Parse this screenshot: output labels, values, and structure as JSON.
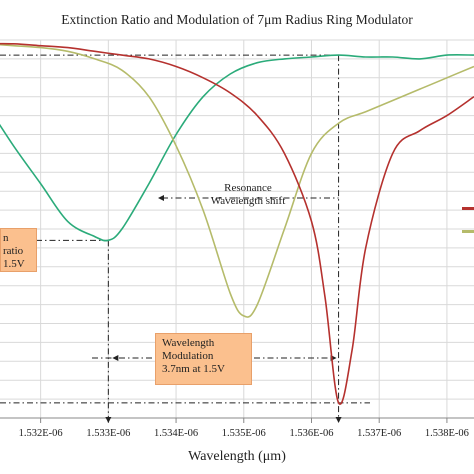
{
  "chart_data": {
    "type": "line",
    "title": "Extinction Ratio and Modulation of 7μm Radius Ring Modulator",
    "xlabel": "Wavelength (μm)",
    "ylabel": "",
    "x_tick_labels": [
      "1.532E-06",
      "1.533E-06",
      "1.534E-06",
      "1.535E-06",
      "1.536E-06",
      "1.537E-06",
      "1.538E-06"
    ],
    "x_tick_values": [
      1.532e-06,
      1.533e-06,
      1.534e-06,
      1.535e-06,
      1.536e-06,
      1.537e-06,
      1.538e-06
    ],
    "xlim": [
      1.5314e-06,
      1.5384e-06
    ],
    "ylim": [
      0,
      100
    ],
    "grid": true,
    "series": [
      {
        "name": "",
        "color": "#2bab7a",
        "x": [
          1.5312e-06,
          1.5316e-06,
          1.532e-06,
          1.5324e-06,
          1.5328e-06,
          1.533e-06,
          1.5332e-06,
          1.5336e-06,
          1.534e-06,
          1.5344e-06,
          1.5348e-06,
          1.5352e-06,
          1.5356e-06,
          1.536e-06,
          1.5364e-06,
          1.5368e-06,
          1.5372e-06,
          1.5376e-06,
          1.538e-06,
          1.5384e-06
        ],
        "y": [
          83,
          72,
          62,
          52,
          48,
          47,
          50,
          62,
          75,
          85,
          91,
          94,
          95,
          95.5,
          96,
          95.5,
          95.5,
          95,
          96,
          96
        ]
      },
      {
        "name": "",
        "color": "#b5bb6a",
        "x": [
          1.5312e-06,
          1.5316e-06,
          1.532e-06,
          1.5324e-06,
          1.5328e-06,
          1.5332e-06,
          1.5336e-06,
          1.534e-06,
          1.5344e-06,
          1.5348e-06,
          1.535e-06,
          1.5352e-06,
          1.5356e-06,
          1.536e-06,
          1.5364e-06,
          1.5368e-06,
          1.5372e-06,
          1.5376e-06,
          1.538e-06,
          1.5384e-06
        ],
        "y": [
          99,
          98.5,
          98,
          97,
          95,
          92,
          85,
          72,
          55,
          33,
          27,
          30,
          50,
          70,
          78,
          81,
          84,
          87,
          90,
          93
        ]
      },
      {
        "name": "",
        "color": "#b5312e",
        "x": [
          1.5312e-06,
          1.5316e-06,
          1.532e-06,
          1.5324e-06,
          1.5328e-06,
          1.5332e-06,
          1.5336e-06,
          1.534e-06,
          1.5344e-06,
          1.5348e-06,
          1.5352e-06,
          1.5356e-06,
          1.536e-06,
          1.5362e-06,
          1.5364e-06,
          1.5366e-06,
          1.5368e-06,
          1.5372e-06,
          1.5376e-06,
          1.538e-06,
          1.5384e-06
        ],
        "y": [
          99,
          99,
          98.5,
          98,
          97,
          96,
          95,
          93,
          90,
          86,
          80,
          70,
          52,
          32,
          4,
          18,
          45,
          70,
          76,
          80,
          85
        ]
      }
    ],
    "annotations": {
      "resonance_line1": "Resonance",
      "resonance_line2": "Wavelength shift",
      "modulation_line1": "Wavelength",
      "modulation_line2": "Modulation",
      "modulation_line3": "3.7nm at 1.5V",
      "extinction_line1": "n ratio",
      "extinction_line2": "1.5V"
    }
  }
}
